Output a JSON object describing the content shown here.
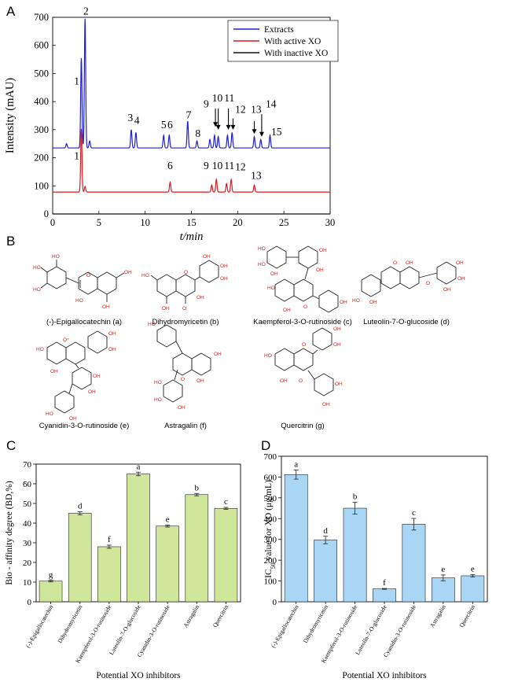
{
  "panels": {
    "A": "A",
    "B": "B",
    "C": "C",
    "D": "D"
  },
  "colors": {
    "extracts": "#1f1fd6",
    "active": "#e0191b",
    "inactive": "#111111",
    "barC": "#cfe69b",
    "barD": "#a9d6f5"
  },
  "chart_data": [
    {
      "type": "line",
      "panel": "A",
      "xlabel": "t/min",
      "ylabel": "Intensity (mAU)",
      "xlim": [
        0,
        30
      ],
      "ylim": [
        0,
        700
      ],
      "xticks": [
        "0",
        "5",
        "10",
        "15",
        "20",
        "25",
        "30"
      ],
      "yticks": [
        "0",
        "100",
        "200",
        "300",
        "400",
        "500",
        "600",
        "700"
      ],
      "legend_position": "top-right",
      "series": [
        {
          "name": "Extracts",
          "baseline": 235,
          "peaks": [
            [
              1.5,
              15
            ],
            [
              3.1,
              320
            ],
            [
              3.5,
              460
            ],
            [
              4.0,
              25
            ],
            [
              8.5,
              65
            ],
            [
              9.0,
              55
            ],
            [
              12.0,
              45
            ],
            [
              12.6,
              45
            ],
            [
              14.6,
              95
            ],
            [
              15.6,
              25
            ],
            [
              17.0,
              30
            ],
            [
              17.5,
              45
            ],
            [
              17.9,
              40
            ],
            [
              18.9,
              45
            ],
            [
              19.4,
              55
            ],
            [
              21.8,
              40
            ],
            [
              22.5,
              30
            ],
            [
              23.5,
              45
            ]
          ]
        },
        {
          "name": "With active XO",
          "baseline": 78,
          "peaks": [
            [
              3.1,
              225
            ],
            [
              3.5,
              20
            ],
            [
              12.7,
              35
            ],
            [
              17.2,
              25
            ],
            [
              17.7,
              45
            ],
            [
              18.8,
              30
            ],
            [
              19.3,
              45
            ],
            [
              21.8,
              25
            ]
          ]
        },
        {
          "name": "With inactive XO",
          "baseline": 0,
          "peaks": []
        }
      ],
      "peak_labels": [
        {
          "text": "1",
          "x": 2.6,
          "y": 460
        },
        {
          "text": "2",
          "x": 3.6,
          "y": 710
        },
        {
          "text": "3",
          "x": 8.4,
          "y": 330
        },
        {
          "text": "4",
          "x": 9.1,
          "y": 320
        },
        {
          "text": "5",
          "x": 12.0,
          "y": 305
        },
        {
          "text": "6",
          "x": 12.7,
          "y": 305
        },
        {
          "text": "7",
          "x": 14.7,
          "y": 340
        },
        {
          "text": "8",
          "x": 15.7,
          "y": 275
        },
        {
          "text": "9",
          "x": 16.6,
          "y": 380
        },
        {
          "text": "10",
          "x": 17.8,
          "y": 400
        },
        {
          "text": "11",
          "x": 19.1,
          "y": 400
        },
        {
          "text": "12",
          "x": 20.3,
          "y": 360
        },
        {
          "text": "13",
          "x": 22.0,
          "y": 360
        },
        {
          "text": "14",
          "x": 23.6,
          "y": 380
        },
        {
          "text": "15",
          "x": 24.2,
          "y": 280
        },
        {
          "text": "1",
          "x": 2.6,
          "y": 195
        },
        {
          "text": "6",
          "x": 12.7,
          "y": 160
        },
        {
          "text": "9",
          "x": 16.6,
          "y": 160
        },
        {
          "text": "10",
          "x": 17.8,
          "y": 160
        },
        {
          "text": "11",
          "x": 19.1,
          "y": 160
        },
        {
          "text": "12",
          "x": 20.3,
          "y": 155
        },
        {
          "text": "13",
          "x": 22.0,
          "y": 125
        }
      ],
      "arrows": [
        {
          "x": 17.6,
          "y_from": 375,
          "y_to": 310
        },
        {
          "x": 17.9,
          "y_from": 375,
          "y_to": 300
        },
        {
          "x": 19.0,
          "y_from": 375,
          "y_to": 300
        },
        {
          "x": 19.5,
          "y_from": 340,
          "y_to": 300
        },
        {
          "x": 21.8,
          "y_from": 330,
          "y_to": 285
        },
        {
          "x": 22.6,
          "y_from": 355,
          "y_to": 275
        }
      ]
    },
    {
      "type": "bar",
      "panel": "C",
      "xlabel": "Potential XO inhibitors",
      "ylabel": "Bio - affinity degree (BD,%)",
      "ylim": [
        0,
        70
      ],
      "yticks": [
        "0",
        "10",
        "20",
        "30",
        "40",
        "50",
        "60",
        "70"
      ],
      "categories": [
        "(-)-Epigallocatechin",
        "Dihydromyricetin",
        "Kaempferol-3-O-rutinoside",
        "Luteolin-7-O-glucoside",
        "Cyanidin-3-O-rutinoside",
        "Astragalin",
        "Quercitrin"
      ],
      "values": [
        10.5,
        45.0,
        28.0,
        65.0,
        38.5,
        54.5,
        47.5
      ],
      "errors": [
        0.4,
        0.8,
        0.8,
        0.9,
        0.5,
        0.6,
        0.5
      ],
      "letters": [
        "g",
        "d",
        "f",
        "a",
        "e",
        "b",
        "c"
      ]
    },
    {
      "type": "bar",
      "panel": "D",
      "xlabel": "Potential XO inhibitors",
      "ylabel": "IC",
      "ylabel_sub": "50",
      "ylabel_rest": " value for XO (μg/mL)",
      "ylim": [
        0,
        700
      ],
      "yticks": [
        "0",
        "100",
        "200",
        "300",
        "400",
        "500",
        "600",
        "700"
      ],
      "categories": [
        "(-)-Epigallocatechin",
        "Dihydromyricetin",
        "Kaempferol-3-O-rutinoside",
        "Luteolin-7-O-glucoside",
        "Cyanidin-3-O-rutinoside",
        "Astragalin",
        "Quercitrin"
      ],
      "values": [
        612,
        297,
        450,
        62,
        373,
        115,
        125
      ],
      "errors": [
        22,
        18,
        28,
        2,
        28,
        14,
        6
      ],
      "letters": [
        "a",
        "d",
        "b",
        "f",
        "c",
        "e",
        "e"
      ]
    }
  ],
  "structures": [
    {
      "name": "(-)-Epigallocatechin (a)"
    },
    {
      "name": "Dihydromyricetin (b)"
    },
    {
      "name": "Kaempferol-3-O-rutinoside (c)"
    },
    {
      "name": "Luteolin-7-O-glucoside (d)"
    },
    {
      "name": "Cyanidin-3-O-rutinoside (e)"
    },
    {
      "name": "Astragalin (f)"
    },
    {
      "name": "Quercitrin (g)"
    }
  ]
}
